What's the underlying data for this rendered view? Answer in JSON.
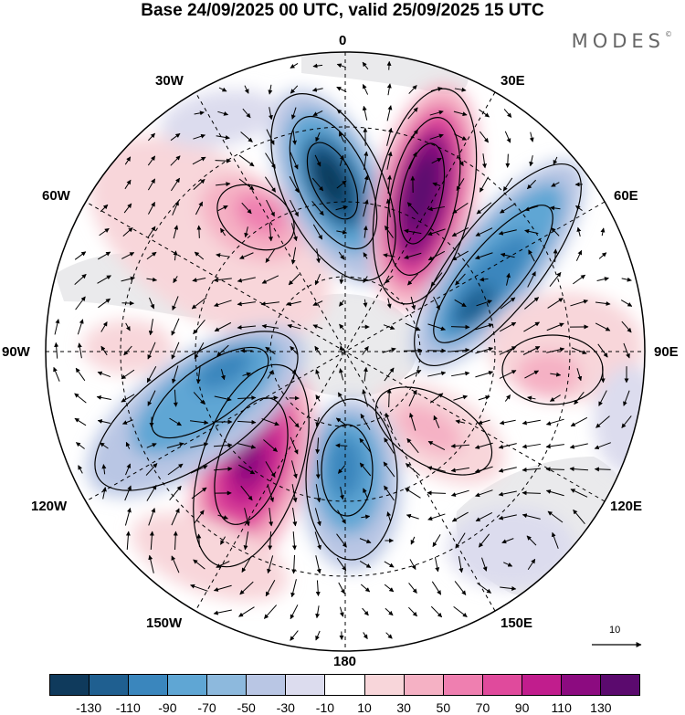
{
  "title": "Base 24/09/2025 00 UTC, valid 25/09/2025 15 UTC",
  "logo": "MODES",
  "logo_mark": "©",
  "longitude_labels": {
    "lon_0": "0",
    "lon_30e": "30E",
    "lon_60e": "60E",
    "lon_90e": "90E",
    "lon_120e": "120E",
    "lon_150e": "150E",
    "lon_180": "180",
    "lon_150w": "150W",
    "lon_120w": "120W",
    "lon_90w": "90W",
    "lon_60w": "60W",
    "lon_30w": "30W"
  },
  "reference_vector": {
    "label": "10"
  },
  "colorbar": {
    "colors": [
      "#0f3a5c",
      "#1f5f90",
      "#3a86bd",
      "#5fa6d4",
      "#8db9dd",
      "#b9c6e4",
      "#dcdcee",
      "#ffffff",
      "#f8d6da",
      "#f5b1c4",
      "#ef7fb0",
      "#e04a9c",
      "#c11d8d",
      "#8c0b80",
      "#5b0a6e"
    ],
    "ticks": [
      "-130",
      "-110",
      "-90",
      "-70",
      "-50",
      "-30",
      "-10",
      "10",
      "30",
      "50",
      "70",
      "90",
      "110",
      "130"
    ]
  }
}
